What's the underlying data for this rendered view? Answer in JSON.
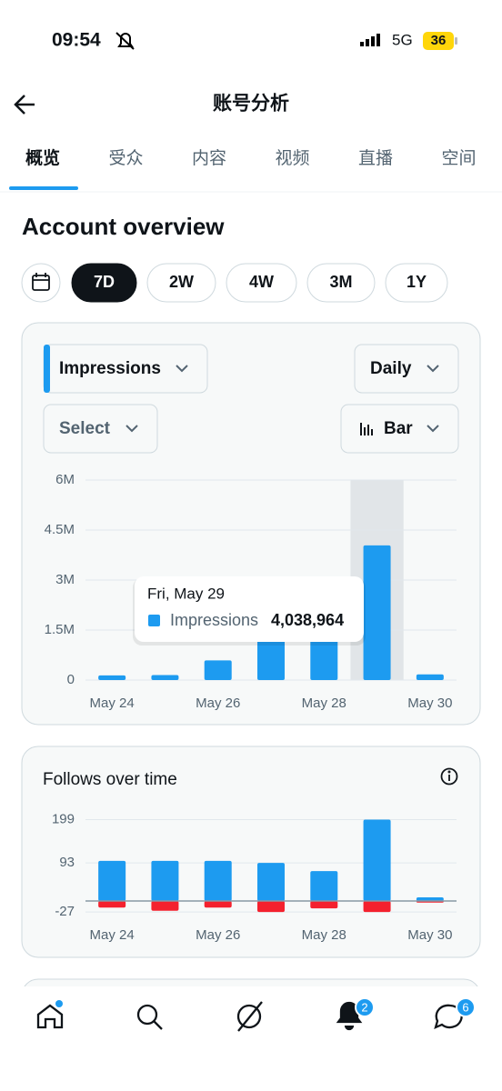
{
  "status": {
    "time": "09:54",
    "network": "5G",
    "battery": "36"
  },
  "header": {
    "title": "账号分析"
  },
  "tabs": [
    "概览",
    "受众",
    "内容",
    "视频",
    "直播",
    "空间"
  ],
  "section_title": "Account overview",
  "ranges": [
    "7D",
    "2W",
    "4W",
    "3M",
    "1Y"
  ],
  "controls": {
    "metric": "Impressions",
    "interval": "Daily",
    "filter": "Select",
    "chart_type": "Bar"
  },
  "nav_badges": {
    "notifications": "2",
    "messages": "6"
  },
  "chart_data": [
    {
      "type": "bar",
      "categories": [
        "May 24",
        null,
        "May 26",
        null,
        "May 28",
        null,
        "May 30"
      ],
      "series": [
        {
          "name": "Impressions",
          "color": "#1d9bf0",
          "values": [
            140000,
            150000,
            590000,
            1260000,
            1500000,
            4038964,
            170000
          ],
          "value_labels": [
            null,
            null,
            null,
            null,
            null,
            "4,038,964",
            null
          ]
        }
      ],
      "ylim": [
        0,
        6000000
      ],
      "yticks": [
        0,
        {
          "value": 1500000,
          "label": "1.5M"
        },
        {
          "value": 3000000,
          "label": "3M"
        },
        {
          "value": 4500000,
          "label": "4.5M"
        },
        {
          "value": 6000000,
          "label": "6M"
        }
      ],
      "grid": true,
      "highlight_index": 5,
      "tooltip_title": "Fri, May 29"
    },
    {
      "type": "bar",
      "title": "Follows over time",
      "categories": [
        "May 24",
        null,
        "May 26",
        null,
        "May 28",
        null,
        "May 30"
      ],
      "series": [
        {
          "color": "#1d9bf0",
          "values": [
            98,
            98,
            98,
            93,
            73,
            199,
            9
          ]
        },
        {
          "color": "#f4212e",
          "values": [
            -16,
            -24,
            -16,
            -27,
            -18,
            -27,
            -4
          ]
        }
      ],
      "ylim": [
        -30,
        210
      ],
      "yticks": [
        -27,
        93,
        199
      ],
      "grid": true
    }
  ]
}
